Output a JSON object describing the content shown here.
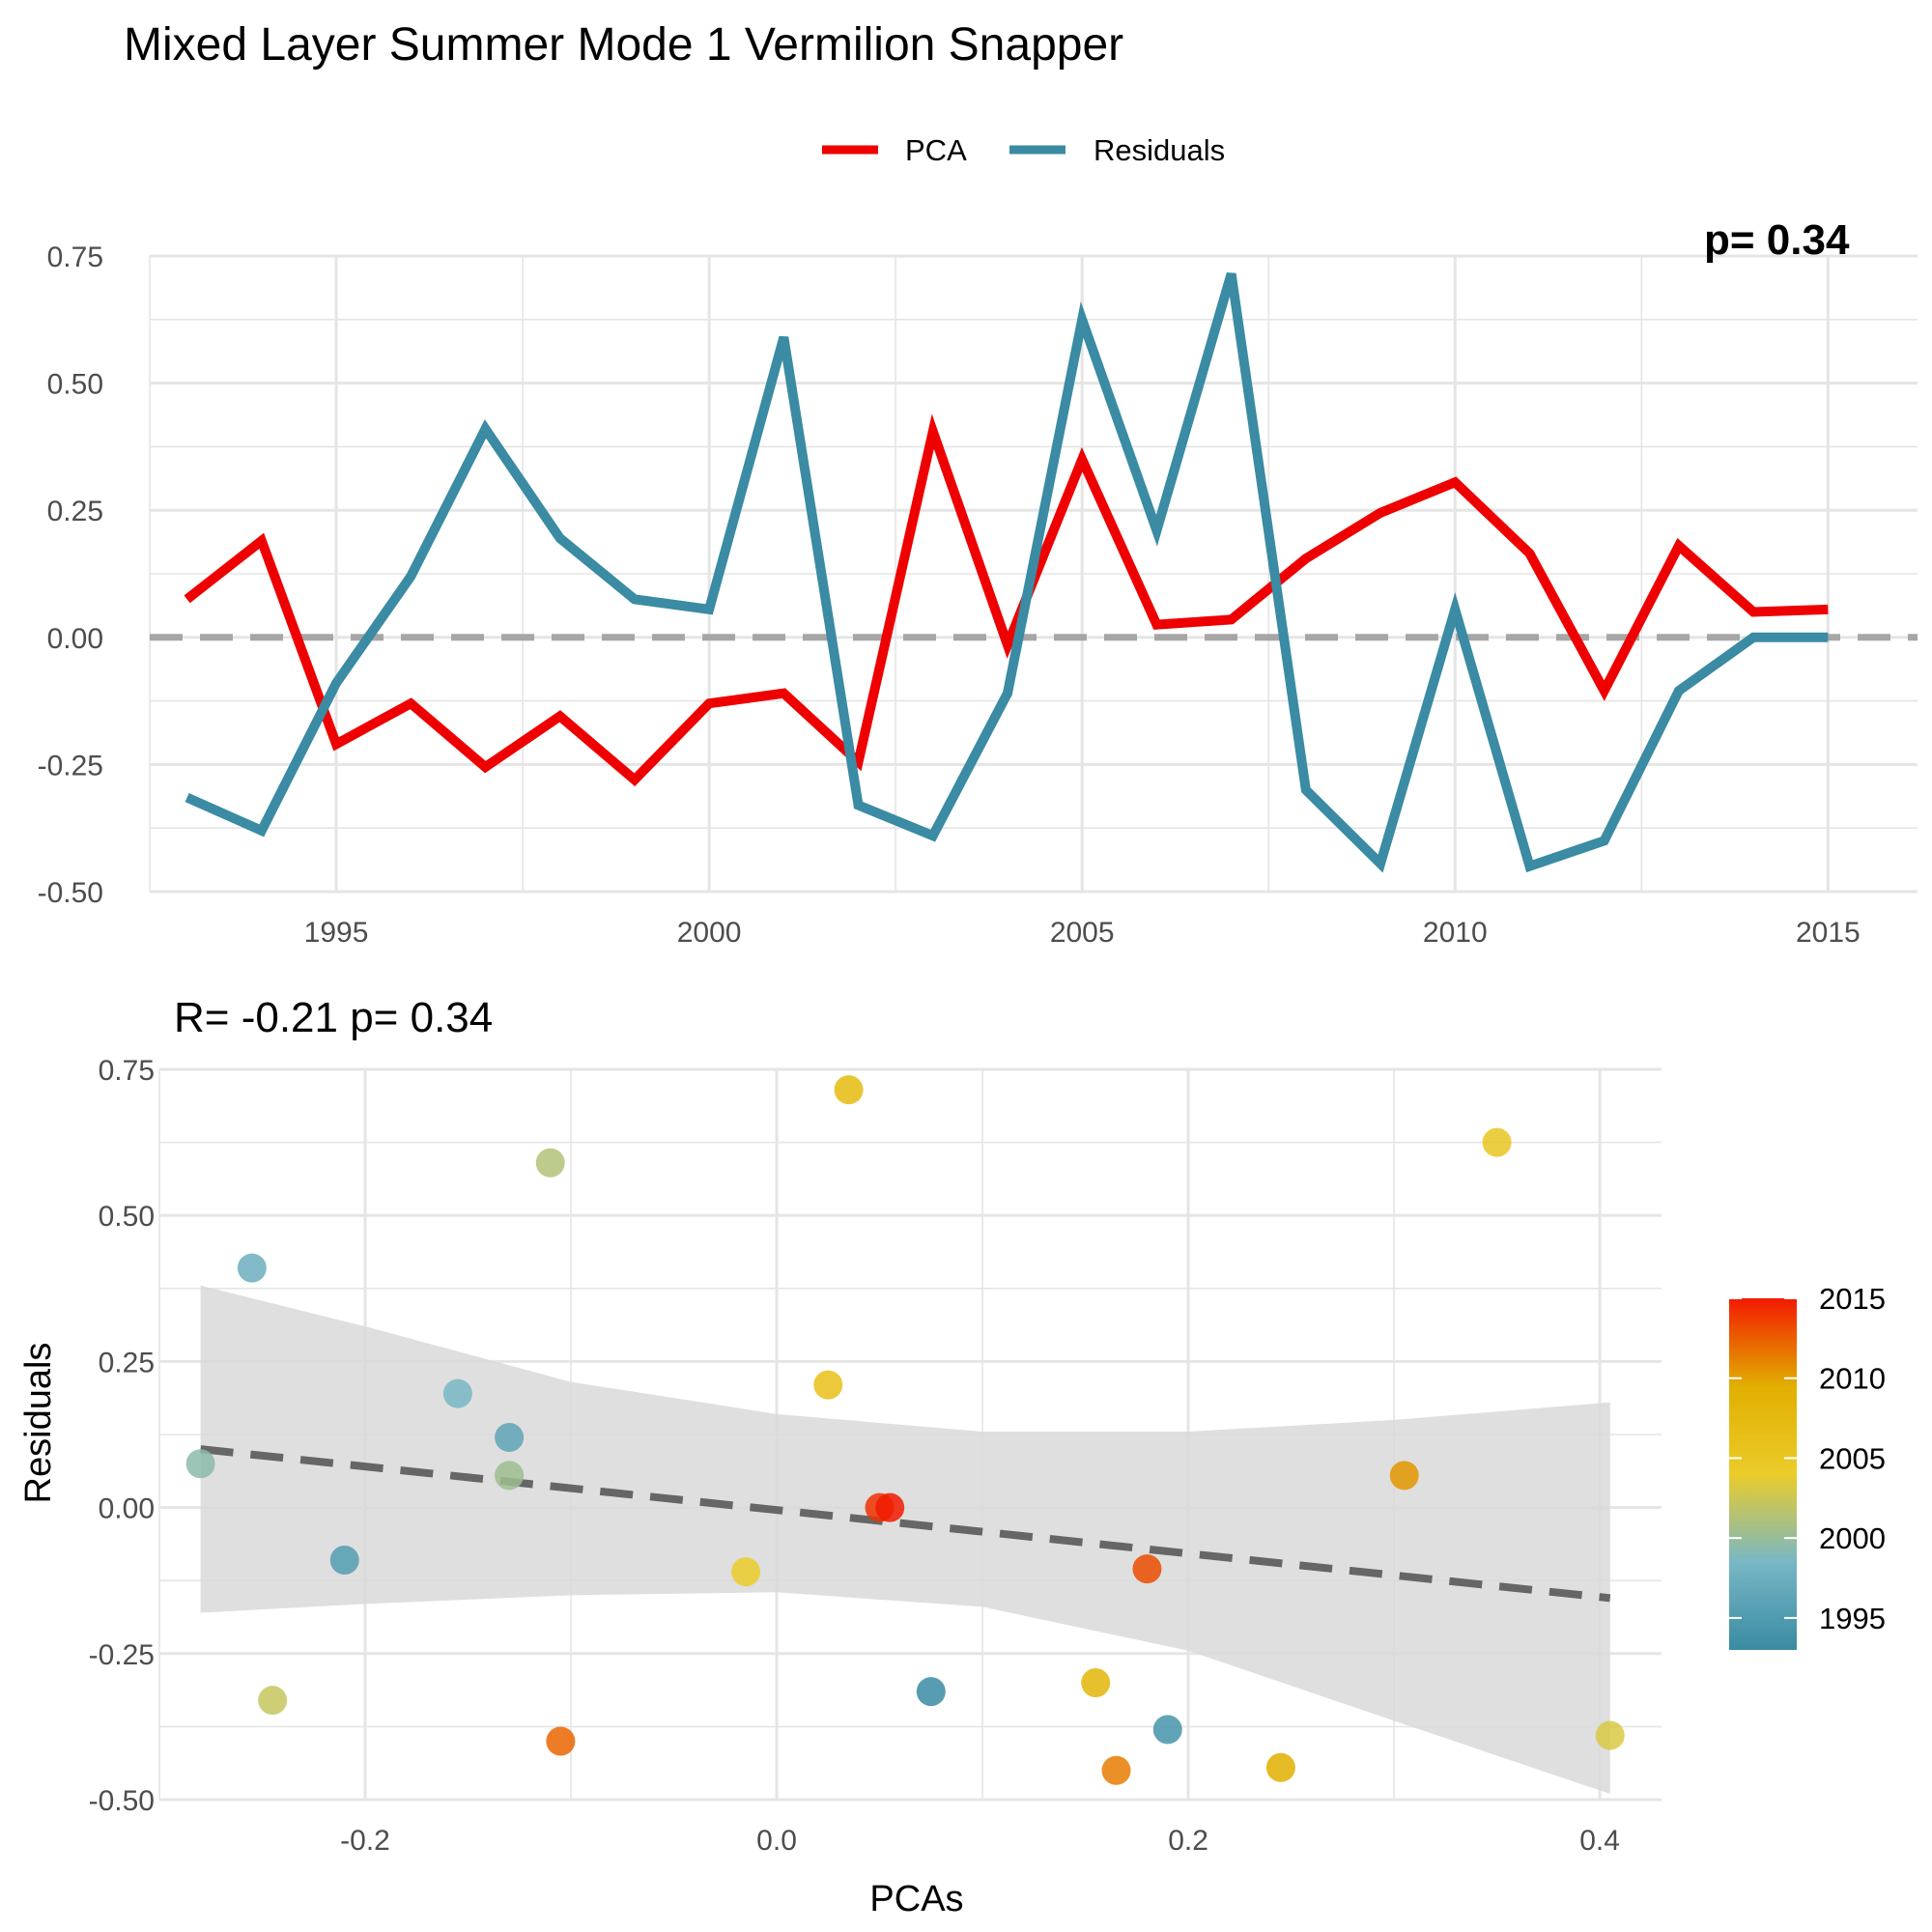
{
  "figure": {
    "title": "Mixed Layer Summer Mode 1 Vermilion Snapper"
  },
  "colors": {
    "pca": "#EE0000",
    "residuals": "#3A8BA3",
    "zero_line": "#A6A6A6",
    "ribbon": "#D9D9D9",
    "fit_line": "#666666",
    "grid": "#E5E5E5",
    "gradient": [
      "#3A8BA3",
      "#78B7C5",
      "#EBCC2A",
      "#E1AF00",
      "#F21A00"
    ]
  },
  "chart_data": [
    {
      "type": "line",
      "title": "",
      "corner_text": "p= 0.34",
      "xlabel": "",
      "ylabel": "",
      "xlim": [
        1992.5,
        2016.2
      ],
      "ylim": [
        -0.5,
        0.75
      ],
      "x_ticks": [
        1995,
        2000,
        2005,
        2010,
        2015
      ],
      "y_ticks": [
        0.75,
        0.5,
        0.25,
        0.0,
        -0.25,
        -0.5
      ],
      "y_tick_labels": [
        "0.75",
        "0.50",
        "0.25",
        "0.00",
        "-0.25",
        "-0.50"
      ],
      "grid": true,
      "legend": {
        "position": "top",
        "entries": [
          "PCA",
          "Residuals"
        ]
      },
      "reference_line": {
        "y": 0,
        "style": "dashed"
      },
      "x": [
        1993,
        1994,
        1995,
        1996,
        1997,
        1998,
        1999,
        2000,
        2001,
        2002,
        2003,
        2004,
        2005,
        2006,
        2007,
        2008,
        2009,
        2010,
        2011,
        2012,
        2013,
        2014,
        2015
      ],
      "series": [
        {
          "name": "PCA",
          "values": [
            0.075,
            0.19,
            -0.21,
            -0.13,
            -0.255,
            -0.155,
            -0.28,
            -0.13,
            -0.11,
            -0.245,
            0.405,
            -0.015,
            0.35,
            0.025,
            0.035,
            0.155,
            0.245,
            0.305,
            0.165,
            -0.105,
            0.18,
            0.05,
            0.055
          ]
        },
        {
          "name": "Residuals",
          "values": [
            -0.315,
            -0.38,
            -0.09,
            0.12,
            0.41,
            0.195,
            0.075,
            0.055,
            0.59,
            -0.33,
            -0.39,
            -0.11,
            0.625,
            0.21,
            0.715,
            -0.3,
            -0.445,
            0.055,
            -0.45,
            -0.4,
            -0.105,
            0.0,
            0.0
          ]
        }
      ]
    },
    {
      "type": "scatter",
      "title": "R= -0.21  p= 0.34",
      "xlabel": "PCAs",
      "ylabel": "Residuals",
      "xlim": [
        -0.3,
        0.43
      ],
      "ylim": [
        -0.5,
        0.75
      ],
      "x_ticks": [
        -0.2,
        0.0,
        0.2,
        0.4
      ],
      "x_tick_labels": [
        "-0.2",
        "0.0",
        "0.2",
        "0.4"
      ],
      "y_ticks": [
        0.75,
        0.5,
        0.25,
        0.0,
        -0.25,
        -0.5
      ],
      "y_tick_labels": [
        "0.75",
        "0.50",
        "0.25",
        "0.00",
        "-0.25",
        "-0.50"
      ],
      "grid": true,
      "colorbar": {
        "position": "right",
        "labels": [
          "2015",
          "2010",
          "2005",
          "2000",
          "1995"
        ],
        "values": [
          2015,
          2010,
          2005,
          2000,
          1995
        ],
        "range": [
          1993,
          2015
        ]
      },
      "regression": {
        "style": "dashed",
        "x": [
          -0.28,
          0.405
        ],
        "y": [
          0.1,
          -0.155
        ],
        "band_x": [
          -0.28,
          -0.2,
          -0.1,
          0.0,
          0.1,
          0.2,
          0.3,
          0.405
        ],
        "band_lower": [
          -0.18,
          -0.165,
          -0.15,
          -0.145,
          -0.17,
          -0.245,
          -0.365,
          -0.49
        ],
        "band_upper": [
          0.38,
          0.31,
          0.215,
          0.16,
          0.13,
          0.13,
          0.15,
          0.18
        ]
      },
      "points": [
        {
          "year": 1993,
          "x": 0.075,
          "y": -0.315
        },
        {
          "year": 1994,
          "x": 0.19,
          "y": -0.38
        },
        {
          "year": 1995,
          "x": -0.21,
          "y": -0.09
        },
        {
          "year": 1996,
          "x": -0.13,
          "y": 0.12
        },
        {
          "year": 1997,
          "x": -0.255,
          "y": 0.41
        },
        {
          "year": 1998,
          "x": -0.155,
          "y": 0.195
        },
        {
          "year": 1999,
          "x": -0.28,
          "y": 0.075
        },
        {
          "year": 2000,
          "x": -0.13,
          "y": 0.055
        },
        {
          "year": 2001,
          "x": -0.11,
          "y": 0.59
        },
        {
          "year": 2002,
          "x": -0.245,
          "y": -0.33
        },
        {
          "year": 2003,
          "x": 0.405,
          "y": -0.39
        },
        {
          "year": 2004,
          "x": -0.015,
          "y": -0.11
        },
        {
          "year": 2005,
          "x": 0.35,
          "y": 0.625
        },
        {
          "year": 2006,
          "x": 0.025,
          "y": 0.21
        },
        {
          "year": 2007,
          "x": 0.035,
          "y": 0.715
        },
        {
          "year": 2008,
          "x": 0.155,
          "y": -0.3
        },
        {
          "year": 2009,
          "x": 0.245,
          "y": -0.445
        },
        {
          "year": 2010,
          "x": 0.305,
          "y": 0.055
        },
        {
          "year": 2011,
          "x": 0.165,
          "y": -0.45
        },
        {
          "year": 2012,
          "x": -0.105,
          "y": -0.4
        },
        {
          "year": 2013,
          "x": 0.18,
          "y": -0.105
        },
        {
          "year": 2014,
          "x": 0.05,
          "y": 0.0
        },
        {
          "year": 2015,
          "x": 0.055,
          "y": 0.0
        }
      ]
    }
  ]
}
